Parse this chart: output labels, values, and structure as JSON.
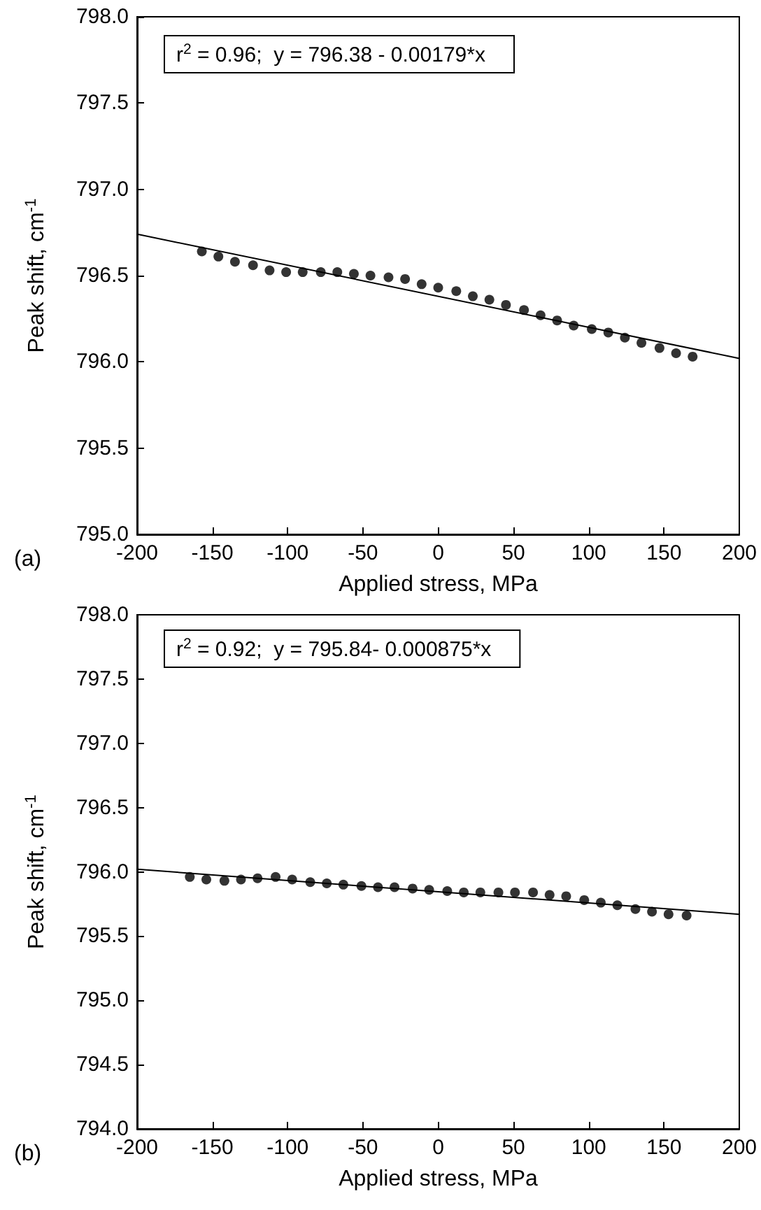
{
  "chart_data": [
    {
      "type": "scatter",
      "xlabel": "Applied stress, MPa",
      "ylabel": "Peak shift, cm$^{-1}$",
      "annotations": [
        "r$^{2}$ = 0.96;  y = 796.38 - 0.00179*x",
        "(a)"
      ],
      "marker": "circle",
      "grid": false,
      "xlim": [
        -200,
        200
      ],
      "xticks": [
        -200,
        -150,
        -100,
        -50,
        0,
        50,
        100,
        150,
        200
      ],
      "ylim": [
        795,
        798
      ],
      "yticks": [
        {
          "value": 795,
          "label": "795.0"
        },
        {
          "value": 795.5,
          "label": "795.5"
        },
        {
          "value": 796,
          "label": "796.0"
        },
        {
          "value": 796.5,
          "label": "796.5"
        },
        {
          "value": 797,
          "label": "797.0"
        },
        {
          "value": 797.5,
          "label": "797.5"
        },
        {
          "value": 798,
          "label": "798.0"
        }
      ],
      "series": [
        {
          "color": "#000000",
          "x": [
            -157,
            -146,
            -135,
            -123,
            -112,
            -101,
            -90,
            -78,
            -67,
            -56,
            -45,
            -33,
            -22,
            -11,
            0,
            12,
            23,
            34,
            45,
            57,
            68,
            79,
            90,
            102,
            113,
            124,
            135,
            147,
            158,
            169
          ],
          "values": [
            796.64,
            796.61,
            796.58,
            796.56,
            796.53,
            796.52,
            796.52,
            796.52,
            796.52,
            796.51,
            796.5,
            796.49,
            796.48,
            796.45,
            796.43,
            796.41,
            796.38,
            796.36,
            796.33,
            796.3,
            796.27,
            796.24,
            796.21,
            796.19,
            796.17,
            796.14,
            796.11,
            796.08,
            796.05,
            796.03
          ]
        },
        {
          "type": "line",
          "marker": "none",
          "color": "#000000",
          "x": [
            -200,
            200
          ],
          "values": [
            796.74,
            796.02
          ]
        }
      ]
    },
    {
      "type": "scatter",
      "xlabel": "Applied stress, MPa",
      "ylabel": "Peak shift, cm$^{-1}$",
      "annotations": [
        "r$^{2}$ = 0.92;  y = 795.84- 0.000875*x",
        "(b)"
      ],
      "marker": "circle",
      "grid": false,
      "xlim": [
        -200,
        200
      ],
      "xticks": [
        -200,
        -150,
        -100,
        -50,
        0,
        50,
        100,
        150,
        200
      ],
      "ylim": [
        794,
        798
      ],
      "yticks": [
        {
          "value": 794,
          "label": "794.0"
        },
        {
          "value": 794.5,
          "label": "794.5"
        },
        {
          "value": 795,
          "label": "795.0"
        },
        {
          "value": 795.5,
          "label": "795.5"
        },
        {
          "value": 796,
          "label": "796.0"
        },
        {
          "value": 796.5,
          "label": "796.5"
        },
        {
          "value": 797,
          "label": "797.0"
        },
        {
          "value": 797.5,
          "label": "797.5"
        },
        {
          "value": 798,
          "label": "798.0"
        }
      ],
      "series": [
        {
          "color": "#000000",
          "x": [
            -165,
            -154,
            -142,
            -131,
            -120,
            -108,
            -97,
            -85,
            -74,
            -63,
            -51,
            -40,
            -29,
            -17,
            -6,
            6,
            17,
            28,
            40,
            51,
            63,
            74,
            85,
            97,
            108,
            119,
            131,
            142,
            153,
            165
          ],
          "values": [
            795.96,
            795.94,
            795.93,
            795.94,
            795.95,
            795.96,
            795.94,
            795.92,
            795.91,
            795.9,
            795.89,
            795.88,
            795.88,
            795.87,
            795.86,
            795.85,
            795.84,
            795.84,
            795.84,
            795.84,
            795.84,
            795.82,
            795.81,
            795.78,
            795.76,
            795.74,
            795.71,
            795.69,
            795.67,
            795.66
          ]
        },
        {
          "type": "line",
          "marker": "none",
          "color": "#000000",
          "x": [
            -200,
            200
          ],
          "values": [
            796.02,
            795.67
          ]
        }
      ]
    }
  ]
}
